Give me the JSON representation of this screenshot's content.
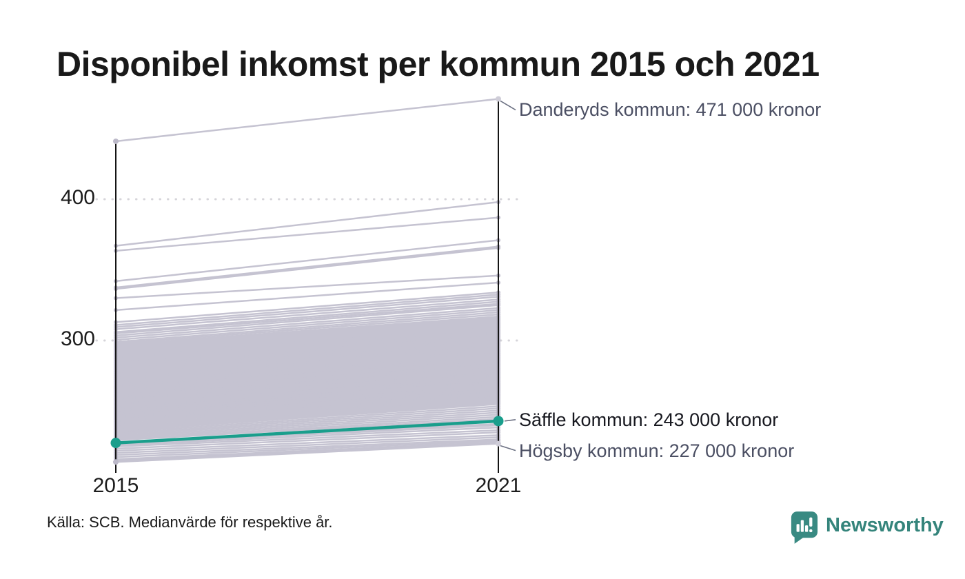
{
  "title": "Disponibel inkomst per kommun 2015 och 2021",
  "source": "Källa: SCB. Medianvärde för respektive år.",
  "branding": {
    "logo_text": "Newsworthy",
    "logo_text_color": "#34847b",
    "logo_icon_color": "#398a82",
    "logo_icon": "speech-bubble-bar-chart"
  },
  "colors": {
    "line_gray": "#c5c3d1",
    "endpoint_gray": "#bcb9c9",
    "endpoint_light": "#cfcdd8",
    "highlight": "#1a9e8c",
    "axis": "#141414",
    "grid_dots": "#d6d5da",
    "leader": "#6b7082",
    "annotation_gray": "#4b4f63",
    "annotation_dark": "#17181f"
  },
  "chart_data": {
    "type": "line",
    "subtype": "slope",
    "x": [
      2015,
      2021
    ],
    "x_labels": [
      "2015",
      "2021"
    ],
    "yticks": [
      400,
      300
    ],
    "ytick_labels": [
      "400",
      "300"
    ],
    "ylim": [
      206,
      480
    ],
    "grid": "dotted-horizontal",
    "legend_position": "none",
    "annotated_series": [
      {
        "name": "Danderyds kommun",
        "values": [
          441,
          471
        ],
        "label": "Danderyds kommun: 471 000 kronor",
        "style": "gray"
      },
      {
        "name": "Säffle kommun",
        "values": [
          227.5,
          243
        ],
        "label": "Säffle kommun: 243 000 kronor",
        "style": "highlight"
      },
      {
        "name": "Högsby kommun",
        "values": [
          214,
          227
        ],
        "label": "Högsby kommun: 227 000 kronor",
        "style": "gray"
      }
    ],
    "background_series": [
      [
        367,
        398
      ],
      [
        363.5,
        387
      ],
      [
        342,
        371
      ],
      [
        337.5,
        366.5
      ],
      [
        336.5,
        365.5
      ],
      [
        330,
        346
      ],
      [
        321.5,
        341
      ],
      [
        313,
        334
      ],
      [
        311,
        332.5
      ],
      [
        309.5,
        331
      ],
      [
        308,
        329
      ],
      [
        306,
        327.5
      ],
      [
        305,
        326
      ],
      [
        303.5,
        325
      ],
      [
        302,
        323
      ],
      [
        300.5,
        321.5
      ],
      [
        299,
        320
      ],
      [
        298,
        318.5
      ],
      [
        297,
        317
      ],
      [
        296,
        316
      ],
      [
        295,
        315
      ],
      [
        294,
        314
      ],
      [
        293,
        313
      ],
      [
        292,
        312
      ],
      [
        291,
        311
      ],
      [
        290,
        310
      ],
      [
        289.5,
        309
      ],
      [
        288.5,
        308
      ],
      [
        287.5,
        307
      ],
      [
        287,
        306.5
      ],
      [
        286,
        305.5
      ],
      [
        285.5,
        305
      ],
      [
        284.5,
        304
      ],
      [
        284,
        303
      ],
      [
        283,
        302.5
      ],
      [
        282.5,
        301.5
      ],
      [
        281.5,
        301
      ],
      [
        281,
        300
      ],
      [
        280,
        299.5
      ],
      [
        279.5,
        298.5
      ],
      [
        278.5,
        298
      ],
      [
        278,
        297
      ],
      [
        277,
        296.5
      ],
      [
        276.5,
        295.5
      ],
      [
        275.5,
        295
      ],
      [
        275,
        294
      ],
      [
        274,
        293.5
      ],
      [
        273.5,
        292.5
      ],
      [
        272.5,
        292
      ],
      [
        272,
        291
      ],
      [
        271,
        290.5
      ],
      [
        270.5,
        289.5
      ],
      [
        269.5,
        289
      ],
      [
        269,
        288
      ],
      [
        268,
        287.5
      ],
      [
        267.5,
        286.5
      ],
      [
        267,
        285.8
      ],
      [
        266.5,
        286
      ],
      [
        266,
        285
      ],
      [
        265,
        284.5
      ],
      [
        264.5,
        283.5
      ],
      [
        264,
        283
      ],
      [
        263.5,
        283
      ],
      [
        263,
        282
      ],
      [
        262,
        281.5
      ],
      [
        261.5,
        280.5
      ],
      [
        261,
        279.8
      ],
      [
        260.5,
        280
      ],
      [
        260,
        279
      ],
      [
        259,
        278.5
      ],
      [
        258.5,
        277.5
      ],
      [
        258,
        277
      ],
      [
        257.5,
        277
      ],
      [
        257,
        276
      ],
      [
        256,
        275.5
      ],
      [
        255.5,
        274.5
      ],
      [
        255,
        273.8
      ],
      [
        254.5,
        274
      ],
      [
        254,
        273
      ],
      [
        253,
        272.5
      ],
      [
        252.5,
        271.5
      ],
      [
        252,
        271
      ],
      [
        251.5,
        271
      ],
      [
        251,
        270
      ],
      [
        250.5,
        269
      ],
      [
        250,
        269.5
      ],
      [
        249.5,
        268.5
      ],
      [
        249,
        267.8
      ],
      [
        248.5,
        268
      ],
      [
        248,
        267
      ],
      [
        247.5,
        266
      ],
      [
        247,
        266.5
      ],
      [
        246.5,
        265.5
      ],
      [
        246,
        264.8
      ],
      [
        245.5,
        265
      ],
      [
        245,
        264
      ],
      [
        244.5,
        263.5
      ],
      [
        244,
        263
      ],
      [
        243,
        262
      ],
      [
        242.5,
        261.5
      ],
      [
        242,
        261
      ],
      [
        241,
        260
      ],
      [
        240,
        259
      ],
      [
        239,
        258
      ],
      [
        238,
        257
      ],
      [
        237,
        256
      ],
      [
        236,
        255
      ],
      [
        235,
        253.5
      ],
      [
        234,
        252
      ],
      [
        233,
        250.5
      ],
      [
        232,
        249
      ],
      [
        231,
        247.5
      ],
      [
        230,
        246
      ],
      [
        229.5,
        244.5
      ],
      [
        228,
        241
      ],
      [
        227,
        240
      ],
      [
        226,
        238.5
      ],
      [
        225,
        236.5
      ],
      [
        223.5,
        235
      ],
      [
        222,
        233
      ],
      [
        220.5,
        231.5
      ],
      [
        219,
        230
      ],
      [
        217.5,
        229
      ],
      [
        216,
        228
      ],
      [
        215,
        227.5
      ]
    ]
  }
}
